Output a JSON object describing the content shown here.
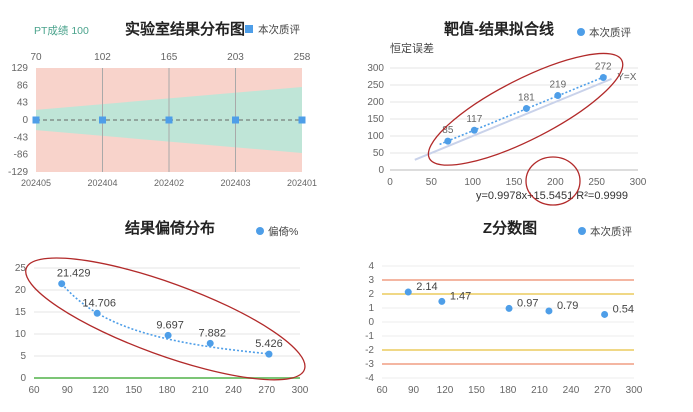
{
  "chart_data": [
    {
      "type": "scatter",
      "title": "实验室结果分布图",
      "top_left_label": "PT成绩 100",
      "legend": [
        "本次质评"
      ],
      "legend_position": "top-right",
      "top_axis_ticks": [
        "70",
        "102",
        "165",
        "203",
        "258"
      ],
      "x_categories": [
        "202405",
        "202404",
        "202402",
        "202403",
        "202401"
      ],
      "y_ticks": [
        "129",
        "86",
        "43",
        "0",
        "-43",
        "-86",
        "-129"
      ],
      "ylim": [
        -129,
        129
      ],
      "series": [
        {
          "name": "本次质评",
          "values": [
            0,
            0,
            0,
            0,
            0
          ]
        }
      ],
      "band_upper": [
        25,
        82
      ],
      "band_lower": [
        -25,
        -82
      ],
      "colors": {
        "background": "#f8d3cb",
        "band": "#bfe5d7",
        "point": "#4e9ee8",
        "text": "#4aa38c"
      }
    },
    {
      "type": "scatter",
      "title": "靶值-结果拟合线",
      "subtitle": "恒定误差",
      "legend": [
        "本次质评"
      ],
      "legend_position": "top-right",
      "identity_label": "Y=X",
      "x_ticks": [
        "0",
        "50",
        "100",
        "150",
        "200",
        "250",
        "300"
      ],
      "y_ticks": [
        "0",
        "50",
        "100",
        "150",
        "200",
        "250",
        "300"
      ],
      "xlim": [
        0,
        300
      ],
      "ylim": [
        0,
        300
      ],
      "series": [
        {
          "name": "本次质评",
          "x": [
            70,
            102,
            165,
            203,
            258
          ],
          "y": [
            85,
            117,
            181,
            219,
            272
          ],
          "labels": [
            "85",
            "117",
            "181",
            "219",
            "272"
          ]
        }
      ],
      "fit_line": {
        "slope": 0.9978,
        "intercept": 15.5451
      },
      "equation_text": "y=0.9978x+15.5451   R²=0.9999",
      "colors": {
        "point": "#4e9ee8",
        "fit": "#4e9ee8",
        "identity": "#c9d2ea",
        "ellipse": "#b22a2a"
      }
    },
    {
      "type": "scatter",
      "title": "结果偏倚分布",
      "legend": [
        "偏倚%"
      ],
      "legend_position": "top-right",
      "x_ticks": [
        "60",
        "90",
        "120",
        "150",
        "180",
        "210",
        "240",
        "270",
        "300"
      ],
      "y_ticks": [
        "0",
        "5",
        "10",
        "15",
        "20",
        "25"
      ],
      "xlim": [
        60,
        300
      ],
      "ylim": [
        0,
        25
      ],
      "series": [
        {
          "name": "偏倚%",
          "x": [
            85,
            117,
            181,
            219,
            272
          ],
          "y": [
            21.429,
            14.706,
            9.697,
            7.882,
            5.426
          ],
          "labels": [
            "21.429",
            "14.706",
            "9.697",
            "7.882",
            "5.426"
          ]
        }
      ],
      "colors": {
        "point": "#4e9ee8",
        "trend": "#4e9ee8",
        "zero_line": "#7cc576",
        "ellipse": "#b22a2a"
      }
    },
    {
      "type": "scatter",
      "title": "Z分数图",
      "legend": [
        "本次质评"
      ],
      "legend_position": "top-right",
      "x_ticks": [
        "60",
        "90",
        "120",
        "150",
        "180",
        "210",
        "240",
        "270",
        "300"
      ],
      "y_ticks": [
        "4",
        "3",
        "2",
        "1",
        "0",
        "-1",
        "-2",
        "-3",
        "-4"
      ],
      "xlim": [
        60,
        300
      ],
      "ylim": [
        -4,
        4
      ],
      "series": [
        {
          "name": "本次质评",
          "x": [
            85,
            117,
            181,
            219,
            272
          ],
          "y": [
            2.14,
            1.47,
            0.97,
            0.79,
            0.54
          ],
          "labels": [
            "2.14",
            "1.47",
            "0.97",
            "0.79",
            "0.54"
          ]
        }
      ],
      "reference_lines": [
        {
          "y": 3,
          "color": "#ee8a6a"
        },
        {
          "y": 2,
          "color": "#e8c13d"
        },
        {
          "y": -2,
          "color": "#e8c13d"
        },
        {
          "y": -3,
          "color": "#ee8a6a"
        }
      ],
      "colors": {
        "point": "#4e9ee8"
      }
    }
  ]
}
